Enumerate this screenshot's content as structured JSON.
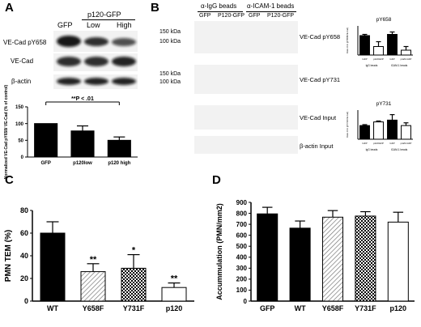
{
  "panel_labels": [
    "A",
    "B",
    "C",
    "D"
  ],
  "panelA": {
    "col_headers": {
      "gfp": "GFP",
      "group": "p120-GFP",
      "low": "Low",
      "high": "High"
    },
    "row_labels": [
      "VE-Cad pY658",
      "VE-Cad",
      "β-actin"
    ]
  },
  "panelB": {
    "groups": [
      "α-IgG beads",
      "α-ICAM-1 beads"
    ],
    "lanes": [
      "GFP",
      "P120-GFP",
      "GFP",
      "P120-GFP"
    ],
    "kda": [
      "150 kDa",
      "100 kDa",
      "150 kDa",
      "100 kDa"
    ],
    "row_labels": [
      "VE-Cad pY658",
      "VE-Cad pY731",
      "VE-Cad Input",
      "β-actin Input"
    ]
  },
  "chart_data": [
    {
      "id": "A",
      "type": "bar",
      "categories": [
        "GFP",
        "p120low",
        "p120 high"
      ],
      "values": [
        100,
        78,
        50
      ],
      "errors": [
        0,
        15,
        10
      ],
      "ylabel": "Normalized VE-Cad pY658/ VE-Cad (% of control)",
      "ylim": [
        0,
        150
      ],
      "yticks": [
        0,
        50,
        100,
        150
      ],
      "annotation": "**P < .01",
      "bar_color": "#000000"
    },
    {
      "id": "B-pY658",
      "type": "bar",
      "title": "pY658",
      "categories": [
        "GFP",
        "p120GFP",
        "GFP",
        "p120-GFP"
      ],
      "groups": [
        "IgG beads",
        "ICAM-1 beads"
      ],
      "values": [
        0.8,
        0.35,
        0.85,
        0.2
      ],
      "errors": [
        0.05,
        0.2,
        0.1,
        0.15
      ],
      "ylabel": "Ratio O.D. (pY658/VE-Cad)",
      "ylim": [
        0,
        1.2
      ],
      "fills": [
        "#000000",
        "#ffffff",
        "#000000",
        "#ffffff"
      ]
    },
    {
      "id": "B-pY731",
      "type": "bar",
      "title": "pY731",
      "categories": [
        "GFP",
        "p120GFP",
        "GFP",
        "p120-GFP"
      ],
      "groups": [
        "IgG beads",
        "ICAM-1 beads"
      ],
      "values": [
        0.75,
        0.95,
        1.05,
        0.75
      ],
      "errors": [
        0.05,
        0.05,
        0.3,
        0.15
      ],
      "ylabel": "Ratio O.D. (pY731/VE-Cad)",
      "ylim": [
        0,
        1.6
      ],
      "fills": [
        "#000000",
        "#ffffff",
        "#000000",
        "#ffffff"
      ]
    },
    {
      "id": "C",
      "type": "bar",
      "categories": [
        "WT",
        "Y658F",
        "Y731F",
        "p120"
      ],
      "values": [
        60,
        26,
        29,
        12
      ],
      "errors": [
        10,
        7,
        12,
        4
      ],
      "significance": [
        "",
        "**",
        "*",
        "**"
      ],
      "fills": [
        "solid",
        "hatch",
        "checker",
        "white"
      ],
      "ylabel": "PMN TEM (%)",
      "ylim": [
        0,
        80
      ],
      "yticks": [
        0,
        20,
        40,
        60,
        80
      ]
    },
    {
      "id": "D",
      "type": "bar",
      "categories": [
        "GFP",
        "WT",
        "Y658F",
        "Y731F",
        "p120"
      ],
      "values": [
        795,
        665,
        765,
        775,
        720
      ],
      "errors": [
        60,
        65,
        60,
        40,
        90
      ],
      "fills": [
        "solid",
        "solid",
        "hatch",
        "checker",
        "white"
      ],
      "ylabel": "Accummulation (PMN/mm2)",
      "ylim": [
        0,
        900
      ],
      "yticks": [
        0,
        100,
        200,
        300,
        400,
        500,
        600,
        700,
        800,
        900
      ]
    }
  ]
}
